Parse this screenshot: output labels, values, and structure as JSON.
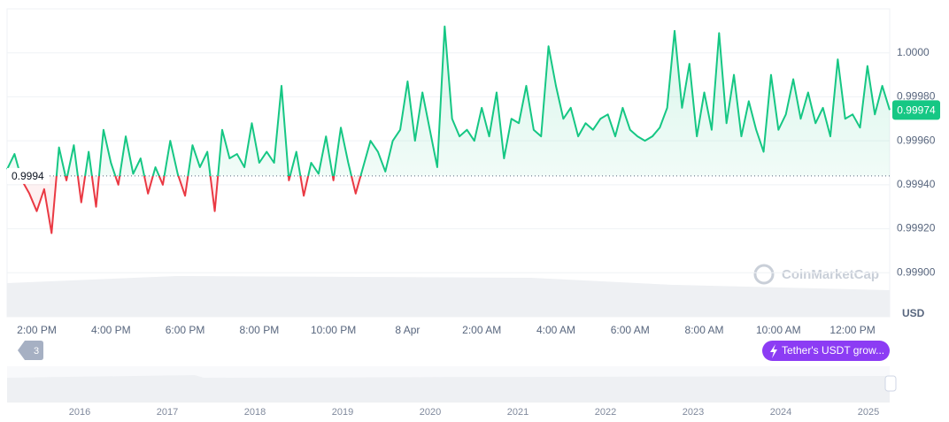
{
  "chart_data": {
    "type": "line",
    "categories": [
      null,
      null,
      null,
      null,
      "2:00 PM",
      null,
      null,
      null,
      null,
      null,
      null,
      null,
      null,
      null,
      "4:00 PM",
      null,
      null,
      null,
      null,
      null,
      null,
      null,
      null,
      null,
      "6:00 PM",
      null,
      null,
      null,
      null,
      null,
      null,
      null,
      null,
      null,
      "8:00 PM",
      null,
      null,
      null,
      null,
      null,
      null,
      null,
      null,
      null,
      "10:00 PM",
      null,
      null,
      null,
      null,
      null,
      null,
      null,
      null,
      null,
      "8 Apr",
      null,
      null,
      null,
      null,
      null,
      null,
      null,
      null,
      null,
      "2:00 AM",
      null,
      null,
      null,
      null,
      null,
      null,
      null,
      null,
      null,
      "4:00 AM",
      null,
      null,
      null,
      null,
      null,
      null,
      null,
      null,
      null,
      "6:00 AM",
      null,
      null,
      null,
      null,
      null,
      null,
      null,
      null,
      null,
      "8:00 AM",
      null,
      null,
      null,
      null,
      null,
      null,
      null,
      null,
      null,
      "10:00 AM",
      null,
      null,
      null,
      null,
      null,
      null,
      null,
      null,
      null,
      "12:00 PM",
      null,
      null,
      null,
      null,
      null
    ],
    "values": [
      0.99947,
      0.99954,
      0.99942,
      0.99936,
      0.99928,
      0.99938,
      0.99918,
      0.99957,
      0.99942,
      0.99958,
      0.99932,
      0.99955,
      0.9993,
      0.99965,
      0.9995,
      0.9994,
      0.99962,
      0.99945,
      0.99952,
      0.99936,
      0.99948,
      0.9994,
      0.9996,
      0.99945,
      0.99935,
      0.99958,
      0.99948,
      0.99955,
      0.99928,
      0.99965,
      0.99952,
      0.99954,
      0.99948,
      0.99968,
      0.9995,
      0.99955,
      0.9995,
      0.99985,
      0.99942,
      0.99955,
      0.99935,
      0.9995,
      0.99945,
      0.99962,
      0.99942,
      0.99966,
      0.9995,
      0.99936,
      0.99948,
      0.9996,
      0.99955,
      0.99946,
      0.9996,
      0.99965,
      0.99987,
      0.9996,
      0.99982,
      0.99965,
      0.99948,
      1.00012,
      0.9997,
      0.99962,
      0.99965,
      0.9996,
      0.99975,
      0.99962,
      0.99982,
      0.99952,
      0.9997,
      0.99968,
      0.99985,
      0.99965,
      0.99962,
      1.00003,
      0.99985,
      0.9997,
      0.99975,
      0.99962,
      0.99968,
      0.99965,
      0.9997,
      0.99972,
      0.99962,
      0.99975,
      0.99965,
      0.99962,
      0.9996,
      0.99962,
      0.99966,
      0.99975,
      1.0001,
      0.99975,
      0.99995,
      0.99962,
      0.99982,
      0.99965,
      1.00009,
      0.99968,
      0.9999,
      0.99962,
      0.99978,
      0.99965,
      0.99955,
      0.9999,
      0.99965,
      0.99972,
      0.99988,
      0.9997,
      0.99982,
      0.99968,
      0.99975,
      0.99962,
      0.99997,
      0.9997,
      0.99972,
      0.99966,
      0.99994,
      0.99972,
      0.99985,
      0.99974
    ],
    "up_color": "#16c784",
    "down_color": "#ea3943",
    "baseline": {
      "value": 0.99944,
      "label": "0.9994"
    },
    "current_price": 0.99974,
    "ylim": [
      0.9988,
      1.0002
    ],
    "yticks": [
      {
        "value": 1.0,
        "label": "1.0000"
      },
      {
        "value": 0.9998,
        "label": "0.99980"
      },
      {
        "value": 0.9996,
        "label": "0.99960"
      },
      {
        "value": 0.9994,
        "label": "0.99940"
      },
      {
        "value": 0.9992,
        "label": "0.99920"
      },
      {
        "value": 0.999,
        "label": "0.99900"
      }
    ],
    "grid": true,
    "currency": "USD",
    "watermark": "CoinMarketCap",
    "badge": "3",
    "news": "Tether's USDT grow...",
    "navigator_years": [
      "2016",
      "2017",
      "2018",
      "2019",
      "2020",
      "2021",
      "2022",
      "2023",
      "2024",
      "2025"
    ]
  }
}
